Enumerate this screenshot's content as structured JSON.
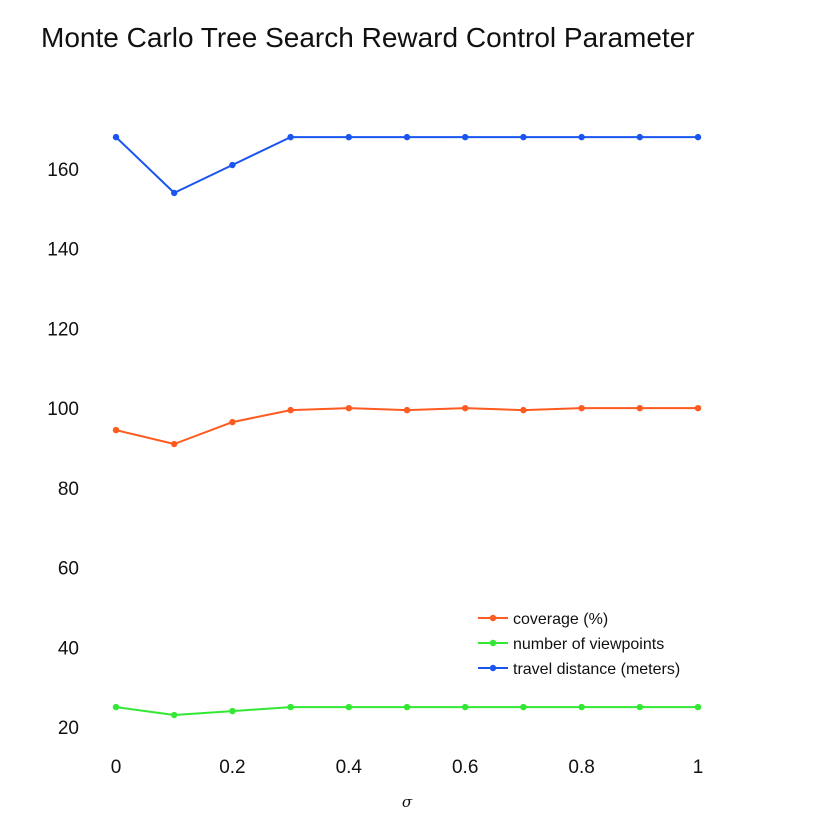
{
  "chart_data": {
    "type": "line",
    "title": "Monte Carlo Tree Search Reward Control Parameter",
    "xlabel": "σ",
    "ylabel": "",
    "x": [
      0,
      0.1,
      0.2,
      0.3,
      0.4,
      0.5,
      0.6,
      0.7,
      0.8,
      0.9,
      1
    ],
    "xticks": [
      0,
      0.2,
      0.4,
      0.6,
      0.8,
      1
    ],
    "xtick_labels": [
      "0",
      "0.2",
      "0.4",
      "0.6",
      "0.8",
      "1"
    ],
    "yticks": [
      20,
      40,
      60,
      80,
      100,
      120,
      140,
      160
    ],
    "ytick_labels": [
      "20",
      "40",
      "60",
      "80",
      "100",
      "120",
      "140",
      "160"
    ],
    "xlim": [
      0,
      1
    ],
    "ylim": [
      15,
      190
    ],
    "grid": false,
    "legend_position": "lower-right",
    "series": [
      {
        "name": "coverage (%)",
        "color": "#ff5a1f",
        "values": [
          94.5,
          91,
          96.5,
          99.5,
          100,
          99.5,
          100,
          99.5,
          100,
          100,
          100
        ]
      },
      {
        "name": "number of viewpoints",
        "color": "#33e833",
        "values": [
          25,
          23,
          24,
          25,
          25,
          25,
          25,
          25,
          25,
          25,
          25
        ]
      },
      {
        "name": "travel distance (meters)",
        "color": "#1a55f0",
        "values": [
          168,
          154,
          161,
          168,
          168,
          168,
          168,
          168,
          168,
          168,
          168
        ]
      }
    ]
  }
}
